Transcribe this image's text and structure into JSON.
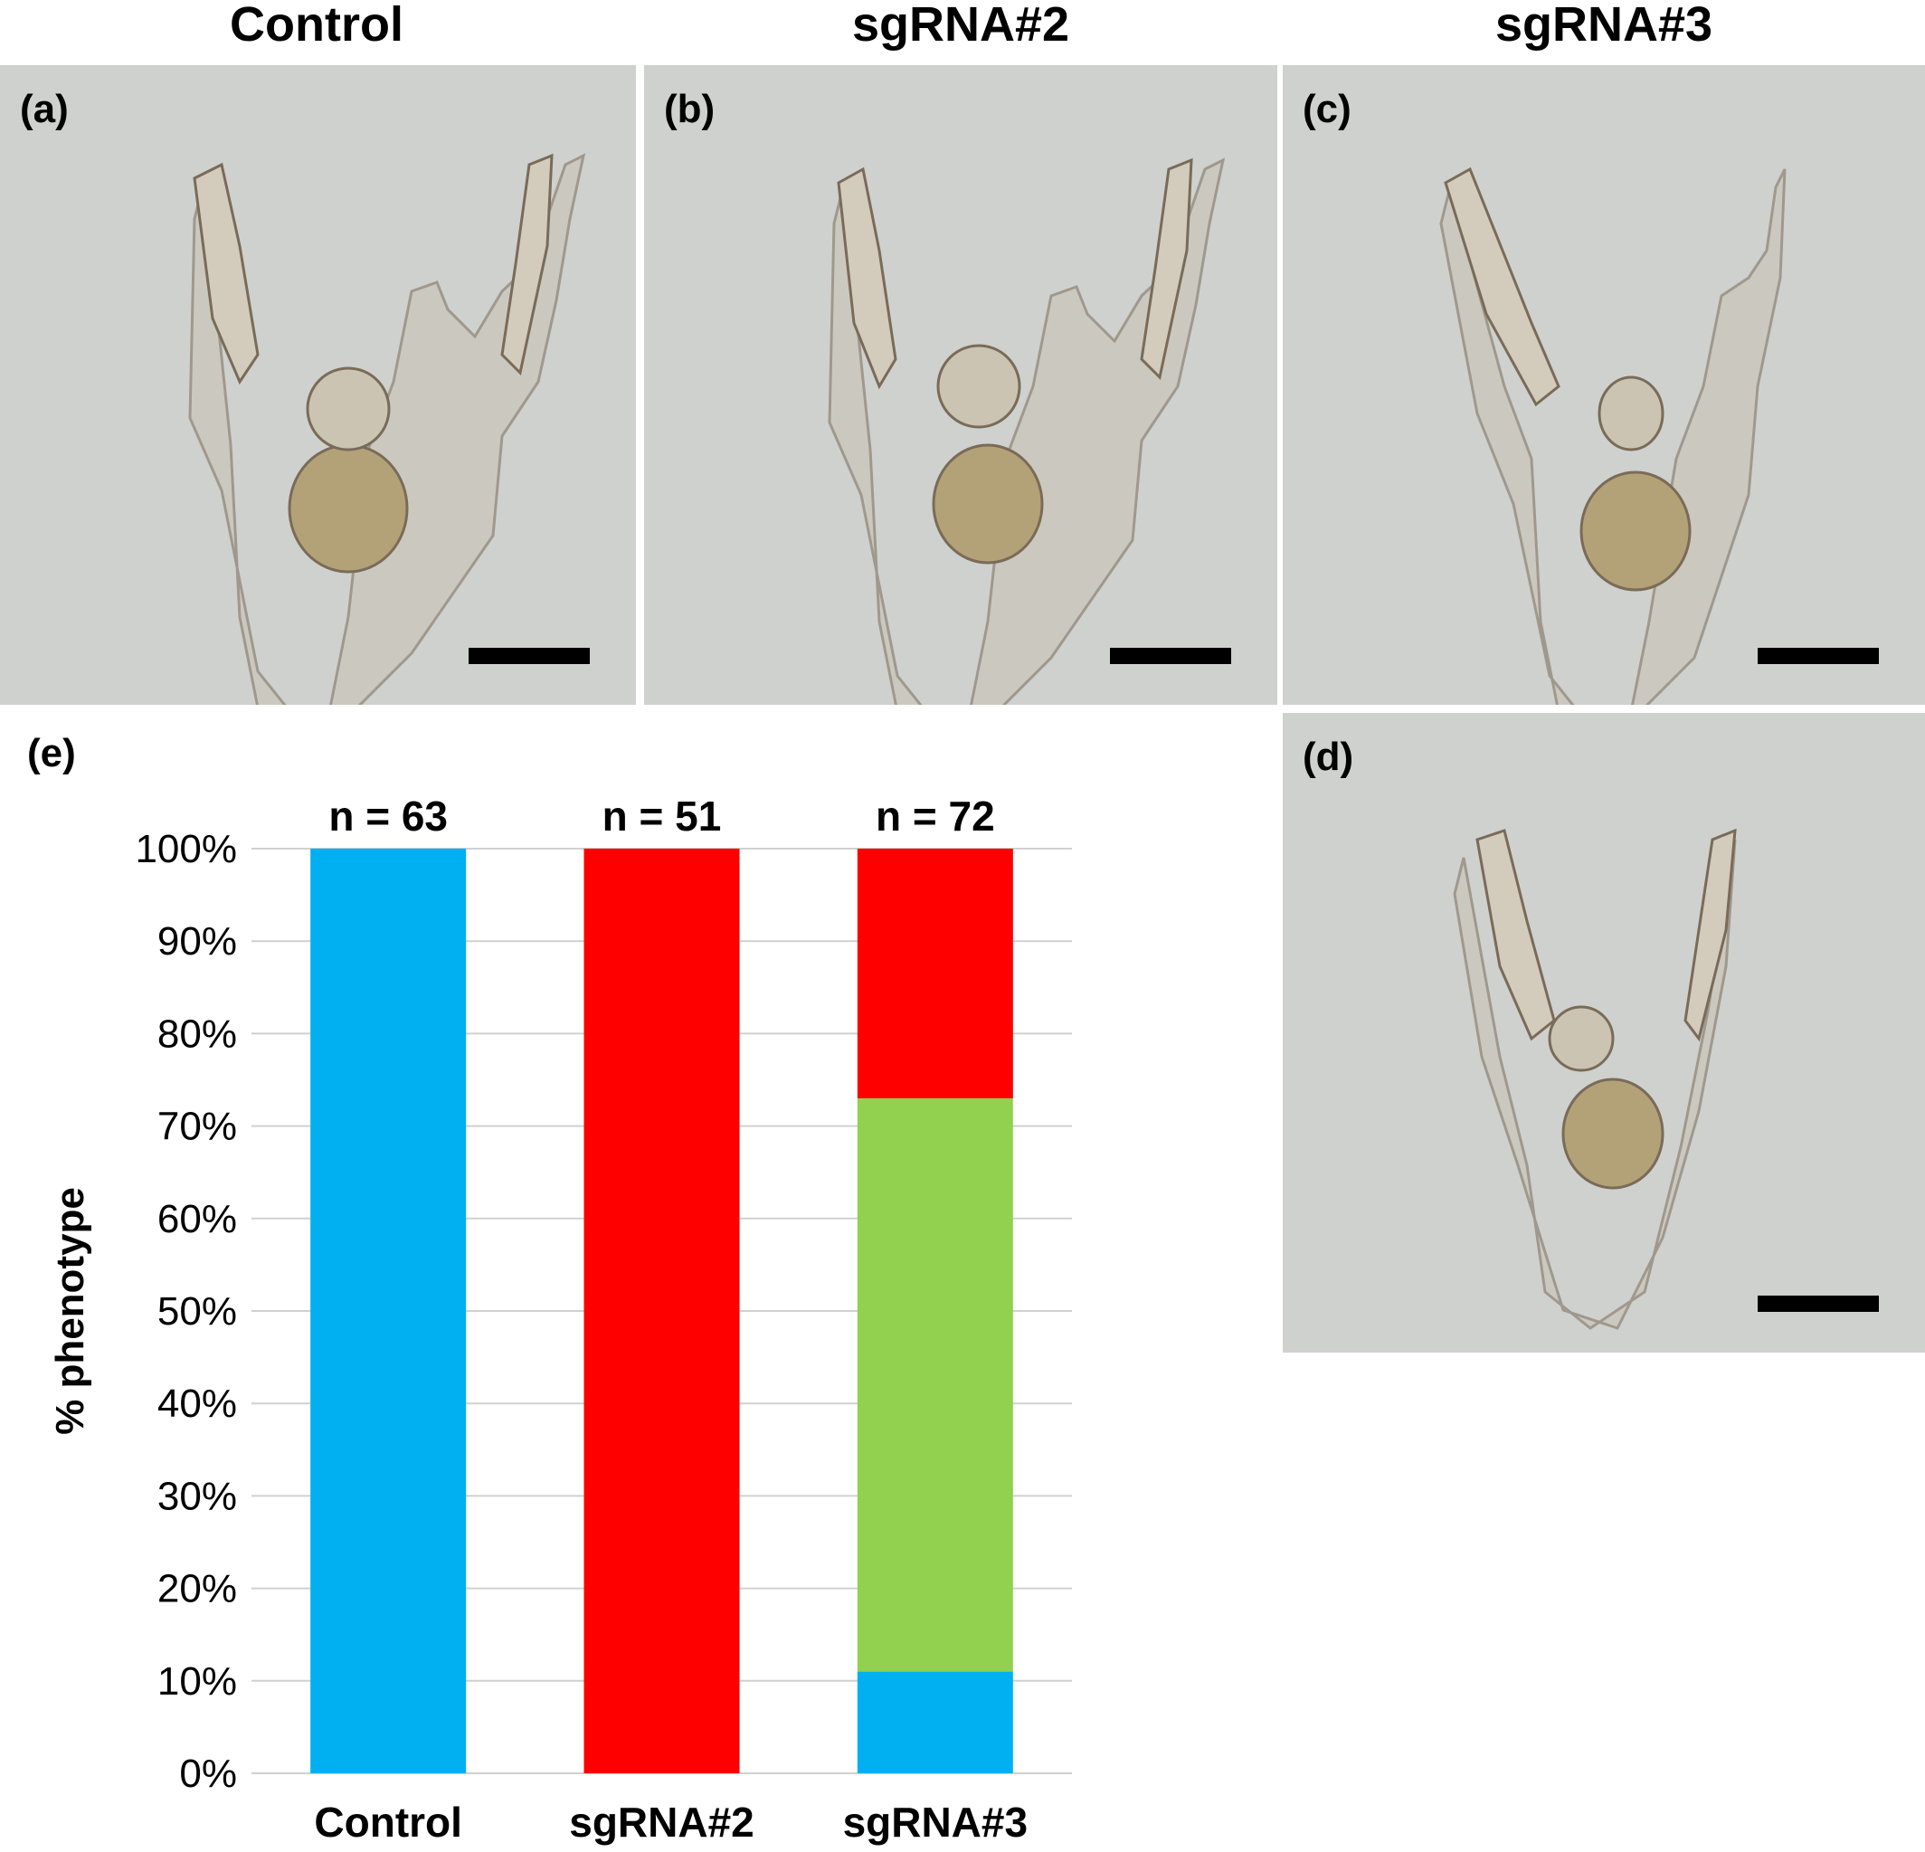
{
  "column_titles": [
    "Control",
    "sgRNA#2",
    "sgRNA#3"
  ],
  "panels": {
    "a": {
      "label": "(a)"
    },
    "b": {
      "label": "(b)"
    },
    "c": {
      "label": "(c)"
    },
    "d": {
      "label": "(d)"
    },
    "e": {
      "label": "(e)"
    }
  },
  "chart_data": {
    "type": "bar",
    "stacked": true,
    "categories": [
      "Control",
      "sgRNA#2",
      "sgRNA#3"
    ],
    "counts": [
      "n = 63",
      "n = 51",
      "n = 72"
    ],
    "ylabel": "% phenotype",
    "ylim": [
      0,
      100
    ],
    "yticks": [
      "0%",
      "10%",
      "20%",
      "30%",
      "40%",
      "50%",
      "60%",
      "70%",
      "80%",
      "90%",
      "100%"
    ],
    "grid": true,
    "series": [
      {
        "color": "#00b0f0",
        "values": [
          100,
          0,
          11
        ]
      },
      {
        "color": "#92d050",
        "values": [
          0,
          0,
          62
        ]
      },
      {
        "color": "#ff0000",
        "values": [
          0,
          100,
          27
        ]
      }
    ]
  }
}
